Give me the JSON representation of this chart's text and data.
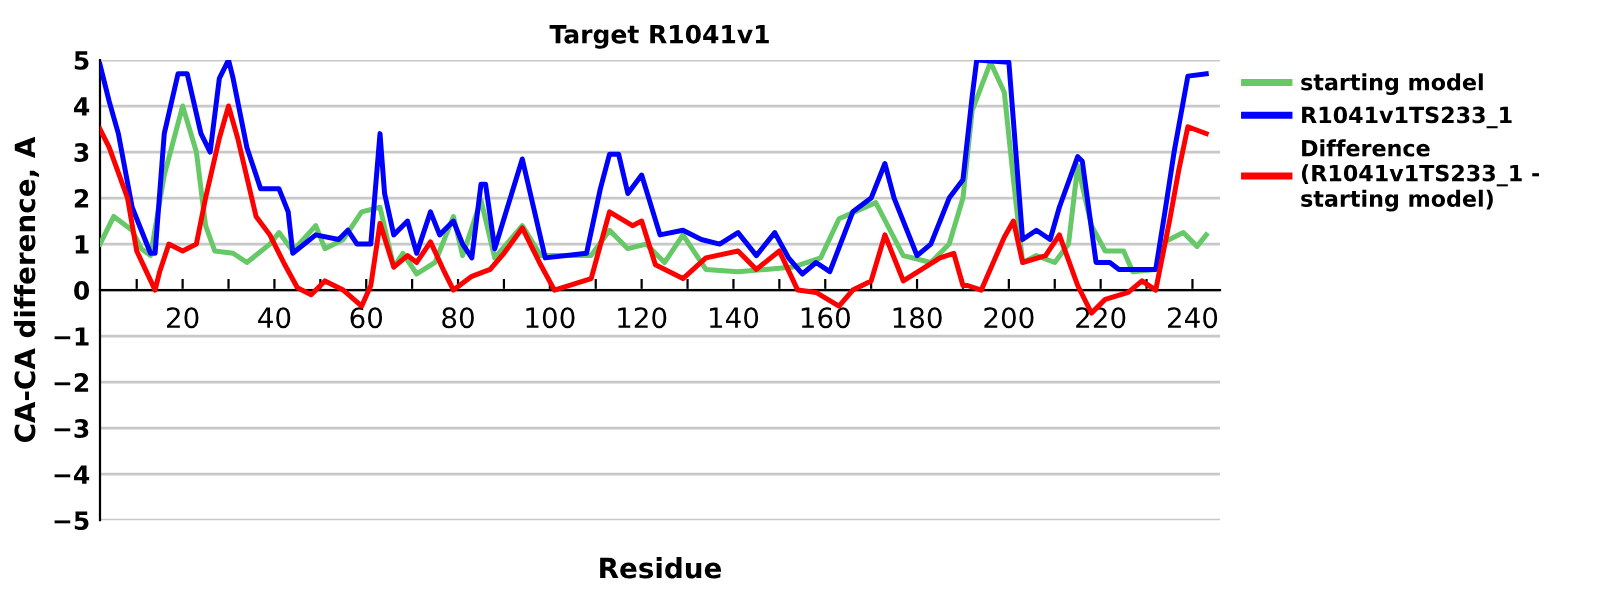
{
  "chart_data": {
    "type": "line",
    "title": "Target R1041v1",
    "xlabel": "Residue",
    "ylabel": "CA-CA difference, A",
    "xlim": [
      2,
      246
    ],
    "ylim": [
      -5,
      5
    ],
    "xticks": [
      {
        "value": 10,
        "label": null
      },
      20,
      {
        "value": 30,
        "label": null
      },
      40,
      {
        "value": 50,
        "label": null
      },
      60,
      {
        "value": 70,
        "label": null
      },
      80,
      {
        "value": 90,
        "label": null
      },
      100,
      {
        "value": 110,
        "label": null
      },
      120,
      {
        "value": 130,
        "label": null
      },
      140,
      {
        "value": 150,
        "label": null
      },
      160,
      {
        "value": 170,
        "label": null
      },
      180,
      {
        "value": 190,
        "label": null
      },
      200,
      {
        "value": 210,
        "label": null
      },
      220,
      {
        "value": 230,
        "label": null
      },
      240
    ],
    "yticks": [
      -5,
      -4,
      -3,
      -2,
      -1,
      0,
      1,
      2,
      3,
      4,
      5
    ],
    "grid": "y",
    "legend": "right",
    "line_style": "solid",
    "series": [
      {
        "name": "starting model",
        "color": "#66c866",
        "x": [
          2,
          5,
          9,
          11,
          13,
          16,
          20,
          23,
          25,
          27,
          31,
          34,
          39,
          41,
          44,
          49,
          51,
          55,
          59,
          63,
          66,
          68,
          71,
          75,
          79,
          81,
          85,
          88,
          94,
          98,
          109,
          113,
          117,
          121,
          125,
          129,
          134,
          141,
          147,
          153,
          159,
          163,
          171,
          177,
          183,
          187,
          190,
          192,
          196,
          199,
          201,
          203,
          206,
          210,
          213,
          215,
          218,
          221,
          225,
          227,
          232,
          234,
          238,
          241,
          243
        ],
        "values": [
          1.0,
          1.6,
          1.3,
          0.9,
          0.75,
          2.5,
          4.0,
          3.0,
          1.4,
          0.85,
          0.8,
          0.6,
          1.0,
          1.25,
          0.85,
          1.4,
          0.9,
          1.1,
          1.7,
          1.8,
          0.5,
          0.8,
          0.35,
          0.6,
          1.6,
          0.75,
          1.95,
          0.7,
          1.4,
          0.75,
          0.75,
          1.3,
          0.9,
          1.0,
          0.6,
          1.2,
          0.45,
          0.4,
          0.45,
          0.5,
          0.7,
          1.55,
          1.9,
          0.75,
          0.6,
          1.0,
          2.0,
          3.9,
          4.95,
          4.3,
          2.4,
          0.6,
          0.75,
          0.6,
          1.0,
          2.7,
          1.4,
          0.85,
          0.85,
          0.4,
          0.45,
          1.05,
          1.25,
          0.95,
          1.2
        ]
      },
      {
        "name": "R1041v1TS233_1",
        "color": "#0000ff",
        "x": [
          2,
          4,
          6,
          9,
          13,
          14,
          16,
          19,
          21,
          24,
          26,
          28,
          30,
          31,
          34,
          37,
          41,
          43,
          44,
          49,
          54,
          56,
          58,
          61,
          63,
          64,
          66,
          69,
          71,
          74,
          76,
          79,
          81,
          83,
          85,
          86,
          88,
          94,
          99,
          108,
          111,
          113,
          115,
          117,
          120,
          124,
          129,
          133,
          137,
          141,
          145,
          149,
          152,
          155,
          158,
          161,
          166,
          170,
          173,
          175,
          180,
          183,
          187,
          190,
          192,
          193,
          200,
          203,
          206,
          209,
          211,
          215,
          216,
          219,
          222,
          224,
          232,
          234,
          236,
          239,
          243
        ],
        "values": [
          4.9,
          4.1,
          3.4,
          1.8,
          0.8,
          0.8,
          3.4,
          4.7,
          4.7,
          3.4,
          3.0,
          4.6,
          5.0,
          4.6,
          3.1,
          2.2,
          2.2,
          1.7,
          0.8,
          1.2,
          1.1,
          1.3,
          1.0,
          1.0,
          3.4,
          2.1,
          1.2,
          1.5,
          0.8,
          1.7,
          1.2,
          1.5,
          1.0,
          0.7,
          2.3,
          2.3,
          0.9,
          2.85,
          0.7,
          0.8,
          2.2,
          2.95,
          2.95,
          2.1,
          2.5,
          1.2,
          1.3,
          1.1,
          1.0,
          1.25,
          0.75,
          1.25,
          0.7,
          0.35,
          0.6,
          0.4,
          1.7,
          2.0,
          2.75,
          2.0,
          0.75,
          1.0,
          2.0,
          2.4,
          4.2,
          5.0,
          4.95,
          1.1,
          1.3,
          1.1,
          1.8,
          2.9,
          2.8,
          0.6,
          0.6,
          0.45,
          0.45,
          1.7,
          3.0,
          4.65,
          4.7
        ]
      },
      {
        "name": "Difference\n(R1041v1TS233_1 -\nstarting model)",
        "color": "#ff0000",
        "x": [
          2,
          4,
          8,
          10,
          14,
          15,
          17,
          20,
          23,
          25,
          28,
          30,
          32,
          36,
          39,
          42,
          45,
          48,
          51,
          55,
          59,
          61,
          63,
          66,
          69,
          71,
          74,
          77,
          79,
          83,
          87,
          90,
          94,
          98,
          101,
          109,
          113,
          118,
          120,
          123,
          129,
          134,
          141,
          145,
          150,
          154,
          158,
          163,
          166,
          170,
          173,
          177,
          185,
          188,
          190,
          191,
          194,
          199,
          201,
          203,
          208,
          211,
          215,
          218,
          221,
          226,
          229,
          232,
          235,
          237,
          239,
          243
        ],
        "values": [
          3.5,
          3.1,
          2.0,
          0.85,
          0.0,
          0.4,
          1.0,
          0.85,
          1.0,
          2.0,
          3.3,
          4.0,
          3.3,
          1.6,
          1.2,
          0.6,
          0.05,
          -0.1,
          0.2,
          0.0,
          -0.35,
          0.1,
          1.45,
          0.5,
          0.75,
          0.6,
          1.05,
          0.4,
          0.0,
          0.3,
          0.45,
          0.8,
          1.35,
          0.55,
          0.0,
          0.25,
          1.7,
          1.4,
          1.5,
          0.55,
          0.25,
          0.7,
          0.85,
          0.45,
          0.85,
          0.0,
          -0.05,
          -0.35,
          0.0,
          0.2,
          1.2,
          0.2,
          0.7,
          0.8,
          0.1,
          0.1,
          0.0,
          1.15,
          1.5,
          0.6,
          0.75,
          1.2,
          0.1,
          -0.5,
          -0.2,
          -0.05,
          0.2,
          0.0,
          1.5,
          2.6,
          3.55,
          3.4
        ]
      }
    ]
  }
}
